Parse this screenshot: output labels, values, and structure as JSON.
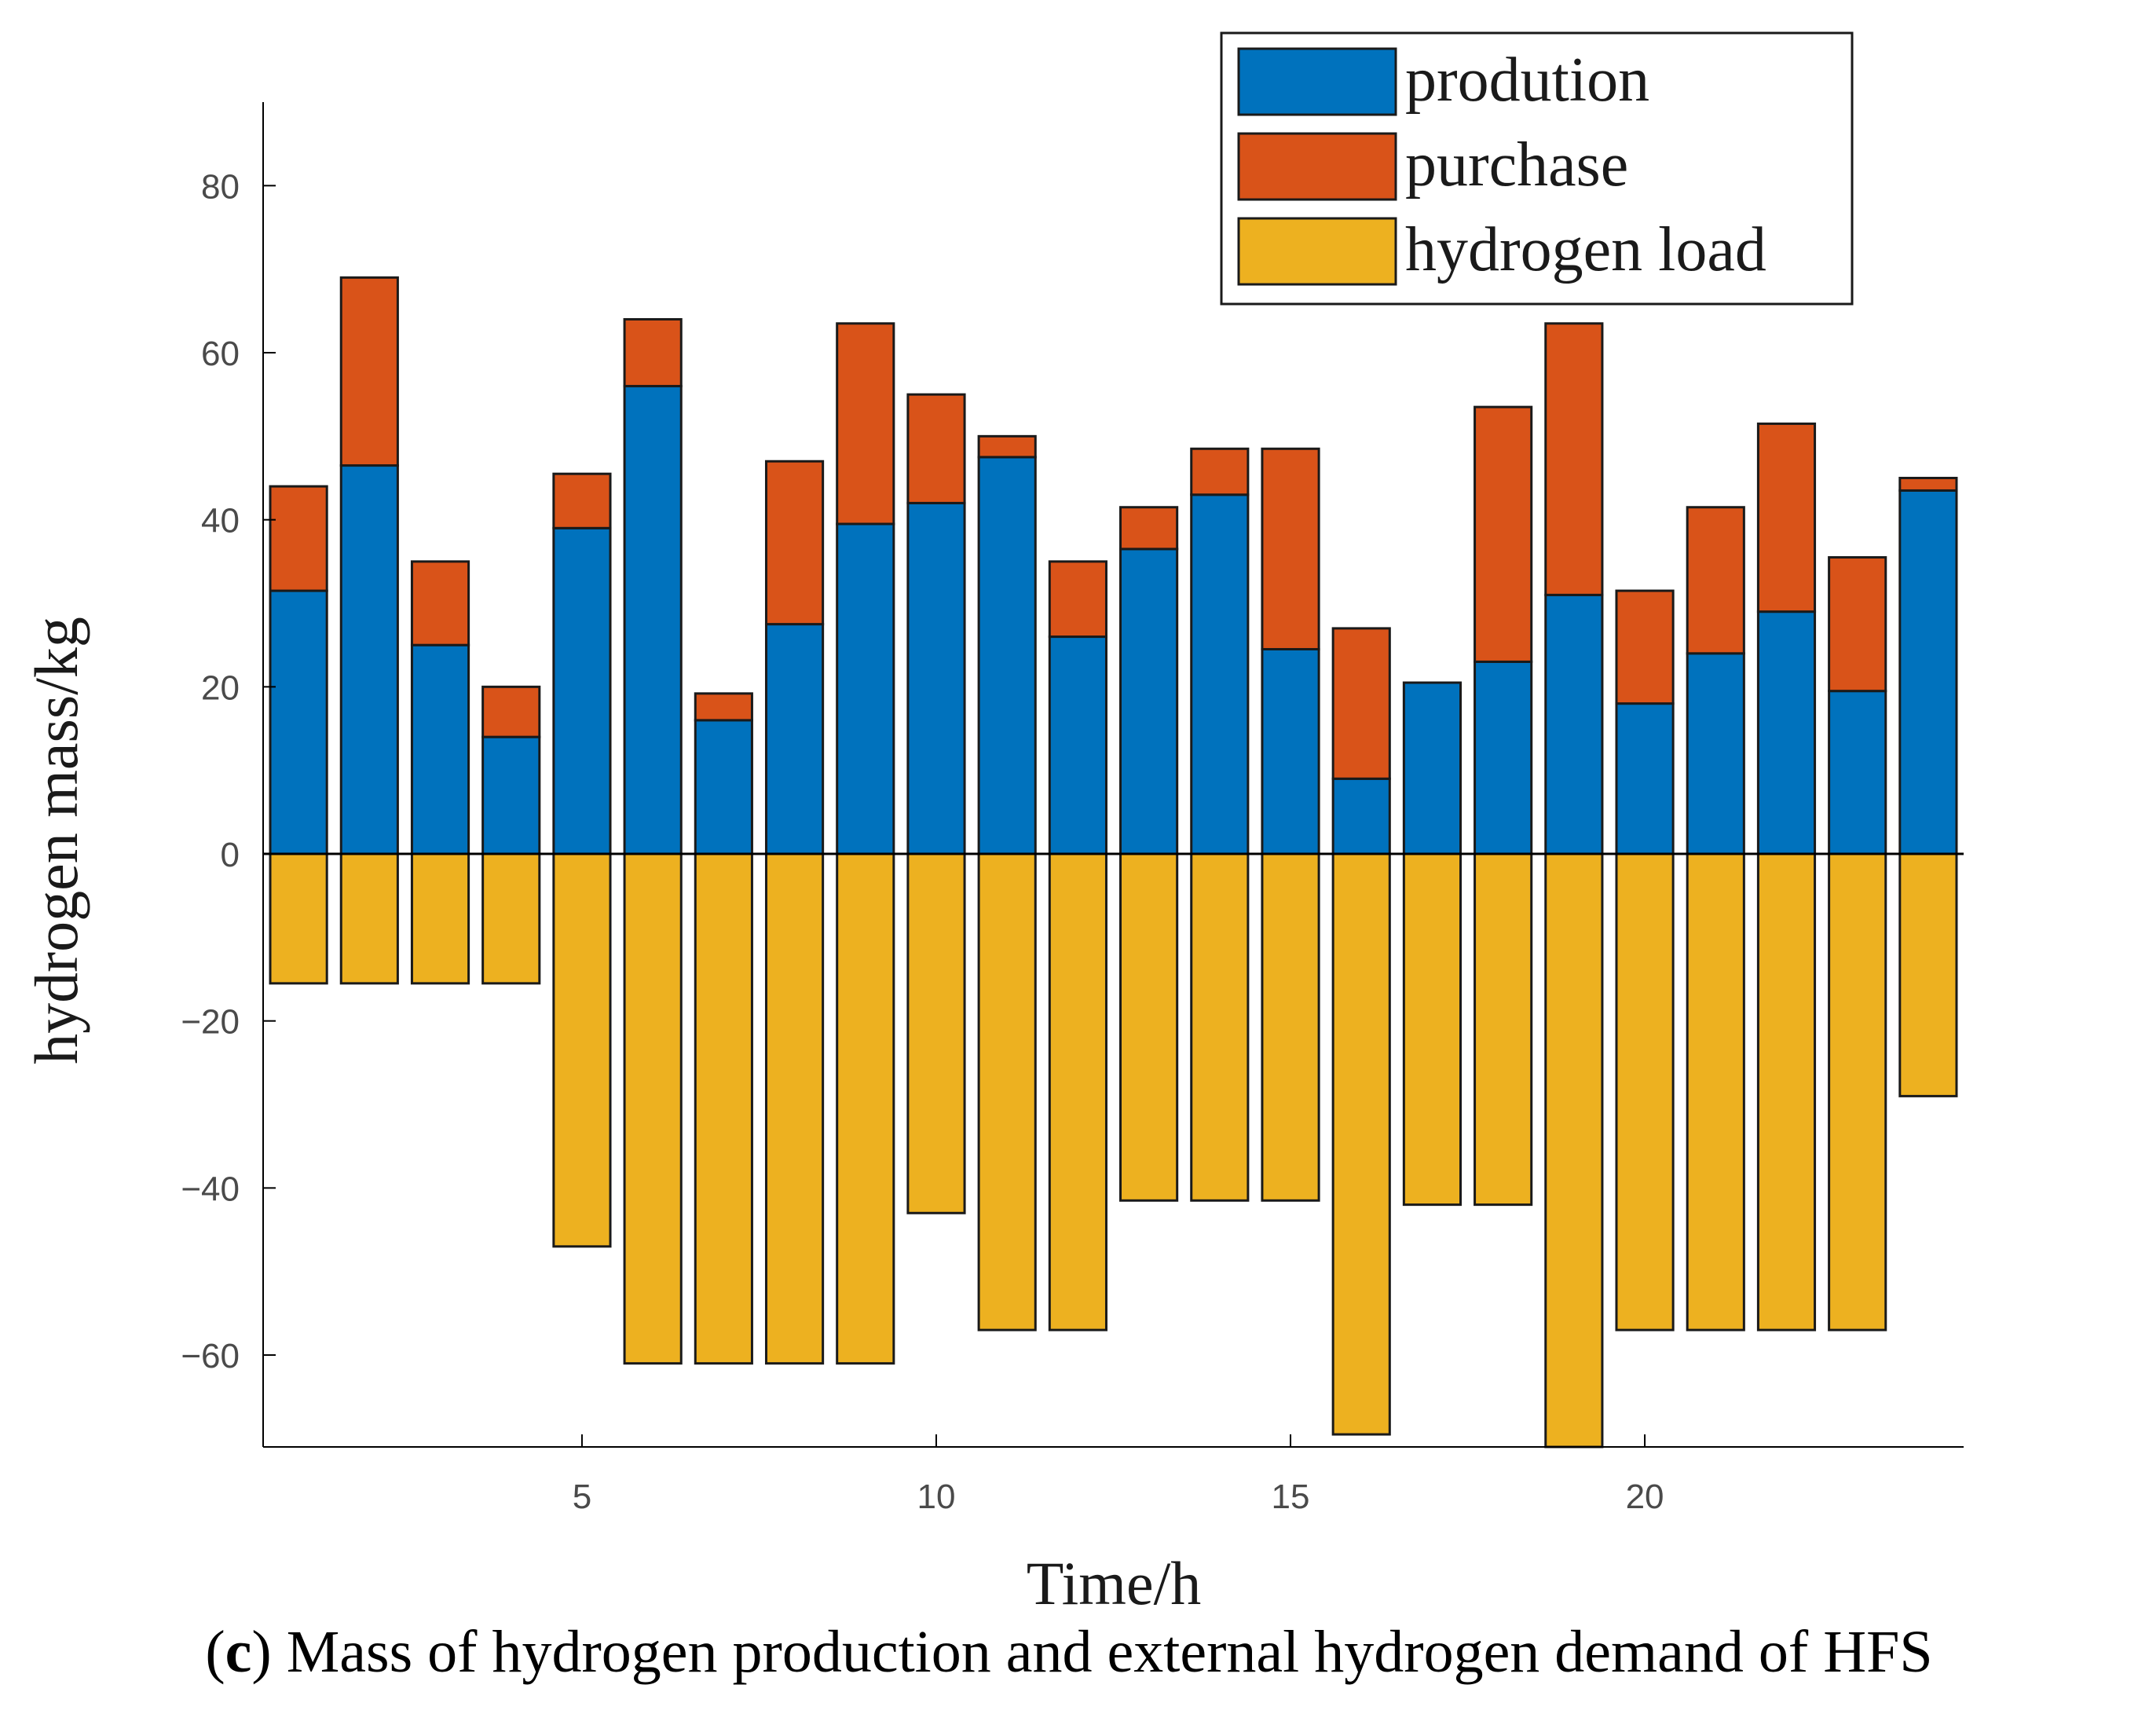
{
  "chart_data": {
    "type": "bar",
    "stacked": true,
    "x": [
      1,
      2,
      3,
      4,
      5,
      6,
      7,
      8,
      9,
      10,
      11,
      12,
      13,
      14,
      15,
      16,
      17,
      18,
      19,
      20,
      21,
      22,
      23,
      24
    ],
    "series": [
      {
        "name": "prodution",
        "color": "#0072BD",
        "values": [
          31.5,
          46.5,
          25,
          14,
          39,
          56,
          16,
          27.5,
          39.5,
          42,
          47.5,
          26,
          36.5,
          43,
          24.5,
          9,
          20.5,
          23,
          31,
          18,
          24,
          29,
          19.5,
          43.5
        ]
      },
      {
        "name": "purchase",
        "color": "#D95319",
        "values": [
          12.5,
          22.5,
          10,
          6,
          6.5,
          8,
          3.2,
          19.5,
          24,
          13,
          2.5,
          9,
          5,
          5.5,
          24,
          18,
          0,
          30.5,
          32.5,
          13.5,
          17.5,
          22.5,
          16,
          1.5
        ]
      },
      {
        "name": "hydrogen load",
        "color": "#EDB120",
        "values": [
          -15.5,
          -15.5,
          -15.5,
          -15.5,
          -47,
          -61,
          -61,
          -61,
          -61,
          -43,
          -57,
          -57,
          -41.5,
          -41.5,
          -41.5,
          -69.5,
          -42,
          -42,
          -71,
          -57,
          -57,
          -57,
          -57,
          -29
        ]
      }
    ],
    "xlabel": "Time/h",
    "ylabel": "hydrogen mass/kg",
    "xticks": [
      5,
      10,
      15,
      20
    ],
    "yticks": [
      80,
      60,
      40,
      20,
      0,
      -20,
      -40,
      -60
    ],
    "ytick_labels": [
      "80",
      "60",
      "40",
      "20",
      "0",
      "−20",
      "−40",
      "−60"
    ],
    "xlim": [
      0.5,
      24.5
    ],
    "ylim": [
      -71,
      90
    ],
    "legend_position": "top-right",
    "grid": false
  },
  "caption": {
    "letter": "c",
    "text": " Mass of hydrogen production and external hydrogen demand of HFS"
  }
}
